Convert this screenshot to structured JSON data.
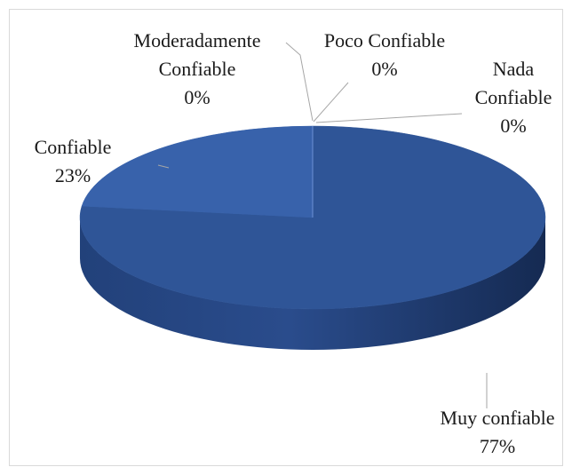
{
  "chart_data": {
    "type": "pie",
    "categories": [
      "Muy confiable",
      "Confiable",
      "Moderadamente Confiable",
      "Poco Confiable",
      "Nada Confiable"
    ],
    "values": [
      77,
      23,
      0,
      0,
      0
    ],
    "value_labels": [
      "77%",
      "23%",
      "0%",
      "0%",
      "0%"
    ],
    "colors": [
      "#2f5597",
      "#3862ab",
      "#4472c4",
      "#5b84cf",
      "#7497d8"
    ]
  }
}
